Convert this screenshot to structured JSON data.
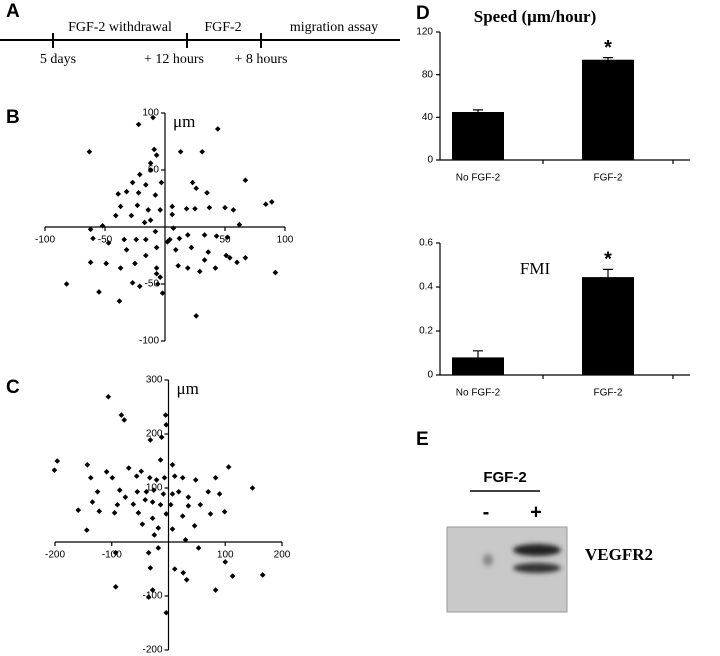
{
  "panels": [
    "A",
    "B",
    "C",
    "D",
    "E"
  ],
  "timeline": {
    "steps": [
      "FGF-2 withdrawal",
      "FGF-2",
      "migration assay"
    ],
    "times": [
      "5 days",
      "+ 12 hours",
      "+ 8 hours"
    ]
  },
  "blot": {
    "group": "FGF-2",
    "lanes": [
      "-",
      "+"
    ],
    "label": "VEGFR2"
  },
  "chart_data": [
    {
      "type": "scatter",
      "unit_label": "μm",
      "color": "#000000",
      "xlim": [
        -100,
        100
      ],
      "ylim": [
        -100,
        100
      ],
      "xticks": [
        -100,
        -50,
        50,
        100
      ],
      "yticks": [
        100,
        50,
        -50,
        -100
      ],
      "x": [
        -22,
        -10,
        -12,
        -9,
        -7,
        -63,
        13,
        31,
        44,
        -12,
        -21,
        -27,
        -16,
        -3,
        23,
        26,
        35,
        67,
        84,
        89,
        -39,
        -32,
        -22,
        -8,
        -37,
        -23,
        -14,
        6,
        18,
        25,
        37,
        50,
        57,
        -4,
        -12,
        -28,
        -17,
        -41,
        -52,
        -62,
        -60,
        -34,
        -24,
        -16,
        4,
        12,
        19,
        33,
        43,
        52,
        62,
        -8,
        2,
        7,
        6,
        -47,
        -32,
        -16,
        -7,
        9,
        22,
        36,
        51,
        60,
        67,
        54,
        -62,
        -49,
        -37,
        -25,
        -7,
        19,
        33,
        42,
        92,
        -7,
        -21,
        -27,
        -4,
        -2,
        -6,
        11,
        29,
        -82,
        -55,
        -38,
        26
      ],
      "values": [
        90,
        96,
        56,
        68,
        63,
        66,
        66,
        66,
        86,
        50,
        46,
        39,
        37,
        39,
        39,
        34,
        30,
        41,
        20,
        22,
        29,
        31,
        30,
        28,
        18,
        19,
        15,
        18,
        16,
        16,
        17,
        17,
        15,
        15,
        6,
        10,
        4,
        10,
        1,
        -2,
        -10,
        -11,
        -11,
        -11,
        -11,
        -10,
        -7,
        -7,
        -8,
        -9,
        2,
        -4,
        -13,
        -1,
        11,
        -14,
        -20,
        -25,
        -18,
        -20,
        -18,
        -22,
        -25,
        -31,
        -27,
        -27,
        -31,
        -32,
        -36,
        -32,
        -36,
        -36,
        -29,
        -36,
        -40,
        -41,
        -52,
        -49,
        -44,
        -58,
        -50,
        -34,
        -39,
        -50,
        -57,
        -65,
        -78
      ]
    },
    {
      "type": "scatter",
      "unit_label": "μm",
      "color": "#000000",
      "xlim": [
        -200,
        200
      ],
      "ylim": [
        -200,
        300
      ],
      "xticks": [
        -200,
        -100,
        100,
        200
      ],
      "yticks": [
        300,
        200,
        100,
        -100,
        -200
      ],
      "x": [
        -5,
        -4,
        -106,
        -83,
        -78,
        -12,
        -32,
        -14,
        7,
        -196,
        -201,
        -143,
        -109,
        -70,
        -48,
        106,
        148,
        -137,
        -99,
        -56,
        -33,
        -21,
        -7,
        11,
        25,
        48,
        83,
        -125,
        -86,
        -76,
        -55,
        -39,
        -26,
        -9,
        7,
        18,
        35,
        70,
        90,
        -134,
        -90,
        -62,
        -41,
        -28,
        -14,
        4,
        35,
        56,
        -159,
        -122,
        -95,
        -53,
        -28,
        -4,
        25,
        74,
        99,
        -46,
        -18,
        7,
        46,
        -144,
        -25,
        30,
        53,
        -18,
        -35,
        -93,
        100,
        -32,
        11,
        26,
        32,
        113,
        166,
        83,
        -28,
        -35,
        -93,
        -4
      ],
      "values": [
        235,
        217,
        269,
        235,
        226,
        194,
        189,
        152,
        143,
        150,
        133,
        143,
        130,
        137,
        131,
        139,
        100,
        119,
        119,
        122,
        119,
        115,
        119,
        122,
        119,
        115,
        119,
        93,
        96,
        83,
        93,
        93,
        96,
        89,
        89,
        93,
        83,
        93,
        89,
        74,
        69,
        70,
        78,
        74,
        69,
        69,
        67,
        69,
        59,
        57,
        54,
        54,
        44,
        52,
        48,
        52,
        56,
        33,
        26,
        24,
        30,
        22,
        13,
        4,
        -11,
        -11,
        -20,
        -20,
        -37,
        -48,
        -50,
        -57,
        -70,
        -63,
        -61,
        -89,
        -89,
        -102,
        -83,
        -131
      ]
    },
    {
      "type": "bar",
      "title": "Speed (μm/hour)",
      "color": "#000000",
      "categories": [
        "No FGF-2",
        "FGF-2"
      ],
      "values": [
        45,
        94
      ],
      "errors": [
        2,
        2
      ],
      "markers": [
        null,
        "*"
      ],
      "ylim": [
        0,
        120
      ],
      "yticks": [
        0,
        40,
        80,
        120
      ]
    },
    {
      "type": "bar",
      "title": "FMI",
      "color": "#000000",
      "categories": [
        "No FGF-2",
        "FGF-2"
      ],
      "values": [
        0.08,
        0.445
      ],
      "errors": [
        0.03,
        0.035
      ],
      "markers": [
        null,
        "*"
      ],
      "ylim": [
        0,
        0.6
      ],
      "yticks": [
        0,
        0.2,
        0.4,
        0.6
      ]
    }
  ]
}
